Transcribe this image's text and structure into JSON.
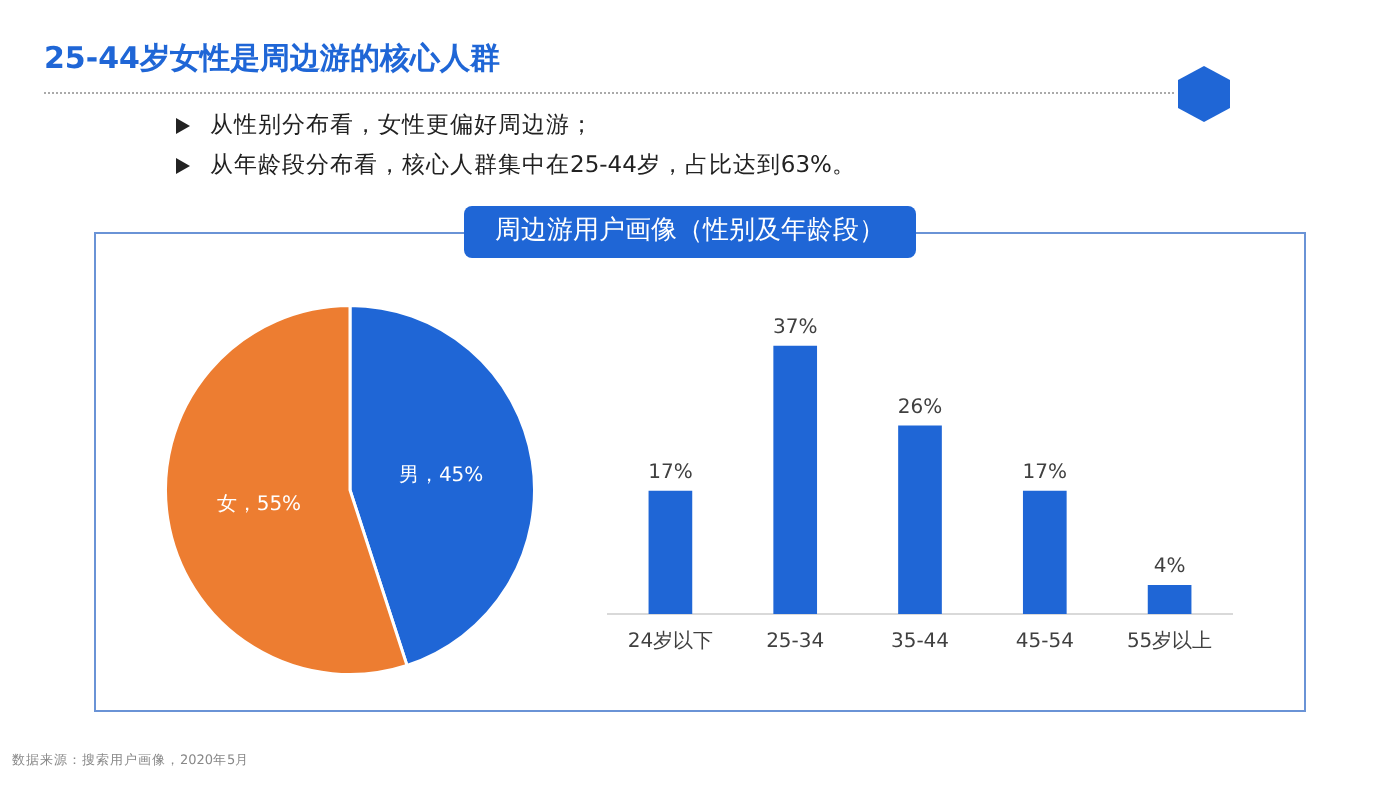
{
  "chart_data": [
    {
      "type": "pie",
      "title": "25-44岁女性是周边游的核心人群",
      "annotations": [
        "从性别分布看，女性更偏好周边游；",
        "从年龄段分布看，核心人群集中在25-44岁，占比达到63%。"
      ],
      "categories": [
        "男",
        "女"
      ],
      "values": [
        45,
        55
      ],
      "colors": [
        "#1f66d6",
        "#ed7d31"
      ],
      "value_labels": [
        "，45%",
        "，55%"
      ]
    },
    {
      "type": "bar",
      "title": "周边游用户画像（性别及年龄段）",
      "annotations": [
        "数据来源：搜索用户画像，2020年5月"
      ],
      "categories": [
        "24岁以下",
        "25-34",
        "35-44",
        "45-54",
        "55岁以上"
      ],
      "values": [
        17,
        37,
        26,
        17,
        4
      ],
      "color": "#1f66d6",
      "value_labels": [
        "17%",
        "37%",
        "26%",
        "17%",
        "4%"
      ]
    }
  ]
}
